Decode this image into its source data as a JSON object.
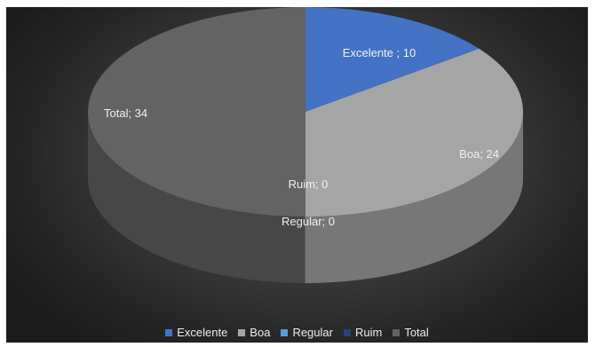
{
  "chart_data": {
    "type": "pie",
    "title": "",
    "categories": [
      "Excelente",
      "Boa",
      "Regular",
      "Ruim",
      "Total"
    ],
    "values": [
      10,
      24,
      0,
      0,
      34
    ],
    "labels": [
      "Excelente ; 10",
      "Boa; 24",
      "Regular; 0",
      "Ruim; 0",
      "Total; 34"
    ],
    "colors": [
      "#4472c4",
      "#a5a5a5",
      "#5b9bd5",
      "#264478",
      "#636363"
    ],
    "style": "3d",
    "legend_position": "bottom",
    "background": "#2b2b2b"
  }
}
